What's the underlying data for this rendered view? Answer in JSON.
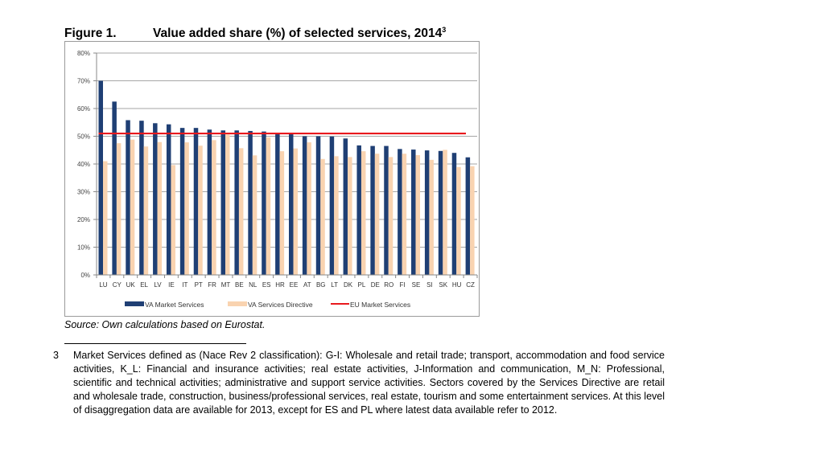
{
  "figure": {
    "number": "Figure 1.",
    "title": "Value added share (%) of selected services, 2014",
    "title_sup": "3",
    "source": "Source: Own calculations based on Eurostat."
  },
  "footnote": {
    "number": "3",
    "text": "Market Services defined as (Nace Rev 2 classification): G-I: Wholesale and retail trade; transport, accommodation and food service activities, K_L: Financial and insurance activities; real estate activities, J-Information and communication, M_N: Professional, scientific and technical activities; administrative and support service activities. Sectors covered by the Services Directive are retail and wholesale trade, construction, business/professional services, real estate, tourism and some entertainment services. At this level of disaggregation data are available for 2013, except for ES and PL where latest data available refer to 2012."
  },
  "colors": {
    "market": "#1f3f74",
    "directive": "#f9d3b0",
    "eu_line": "#e8191d",
    "grid": "#a6a6a6"
  },
  "chart_data": {
    "type": "bar",
    "title": "Value added share (%) of selected services, 2014",
    "xlabel": "",
    "ylabel": "",
    "ylim": [
      0,
      80
    ],
    "yticks": [
      0,
      10,
      20,
      30,
      40,
      50,
      60,
      70,
      80
    ],
    "ytick_labels": [
      "0%",
      "10%",
      "20%",
      "30%",
      "40%",
      "50%",
      "60%",
      "70%",
      "80%"
    ],
    "grid": true,
    "legend_position": "bottom",
    "categories": [
      "LU",
      "CY",
      "UK",
      "EL",
      "LV",
      "IE",
      "IT",
      "PT",
      "FR",
      "MT",
      "BE",
      "NL",
      "ES",
      "HR",
      "EE",
      "AT",
      "BG",
      "LT",
      "DK",
      "PL",
      "DE",
      "RO",
      "FI",
      "SE",
      "SI",
      "SK",
      "HU",
      "CZ"
    ],
    "series": [
      {
        "name": "VA Market Services",
        "type": "bar",
        "values": [
          70.0,
          62.5,
          55.8,
          55.6,
          54.7,
          54.3,
          53.0,
          53.0,
          52.4,
          52.1,
          52.1,
          51.9,
          51.7,
          50.9,
          50.9,
          50.0,
          50.0,
          49.9,
          49.2,
          46.7,
          46.5,
          46.5,
          45.4,
          45.2,
          44.9,
          44.7,
          44.0,
          42.4
        ]
      },
      {
        "name": "VA Services Directive",
        "type": "bar",
        "values": [
          41.0,
          47.5,
          48.8,
          46.3,
          47.9,
          39.6,
          47.8,
          46.6,
          48.6,
          50.6,
          45.7,
          43.1,
          49.6,
          44.6,
          45.6,
          47.8,
          41.8,
          42.8,
          42.5,
          44.6,
          43.7,
          42.5,
          43.7,
          43.2,
          41.5,
          45.1,
          38.9,
          39.2
        ]
      },
      {
        "name": "EU Market Services",
        "type": "line",
        "value": 51.0
      }
    ]
  }
}
